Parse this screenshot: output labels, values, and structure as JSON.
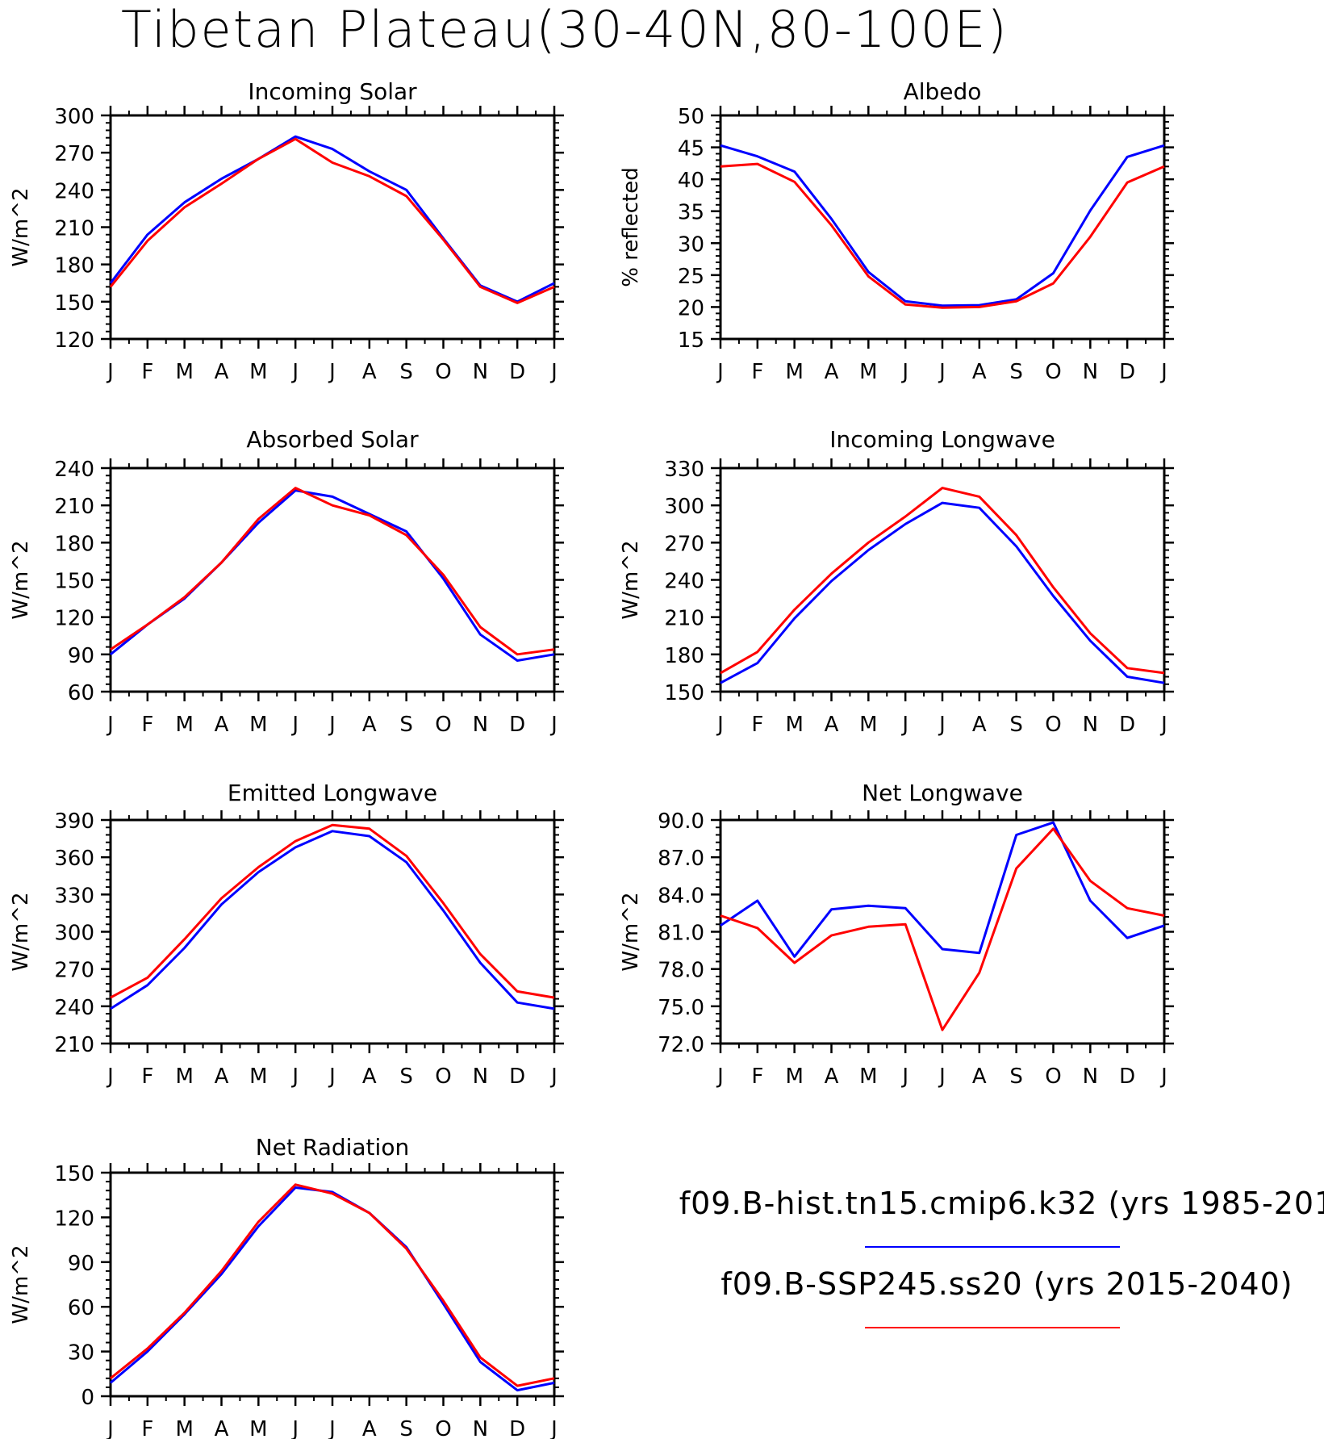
{
  "title": "Tibetan Plateau(30-40N,80-100E)",
  "legend": [
    {
      "label": "f09.B-hist.tn15.cmip6.k32 (yrs 1985-201",
      "color": "#0000ff"
    },
    {
      "label": "f09.B-SSP245.ss20 (yrs 2015-2040)",
      "color": "#ff0000"
    }
  ],
  "chart_data": [
    {
      "type": "line",
      "title": "Incoming Solar",
      "ylabel": "W/m^2",
      "x": [
        "J",
        "F",
        "M",
        "A",
        "M",
        "J",
        "J",
        "A",
        "S",
        "O",
        "N",
        "D",
        "J"
      ],
      "ylim": [
        120,
        300
      ],
      "yticks": [
        "120",
        "150",
        "180",
        "210",
        "240",
        "270",
        "300"
      ],
      "series": [
        {
          "color": "#0000ff",
          "values": [
            165,
            204,
            230,
            249,
            265,
            283,
            273,
            255,
            240,
            201,
            163,
            150,
            165
          ]
        },
        {
          "color": "#ff0000",
          "values": [
            162,
            199,
            226,
            245,
            265,
            281,
            262,
            251,
            235,
            200,
            162,
            149,
            162
          ]
        }
      ]
    },
    {
      "type": "line",
      "title": "Albedo",
      "ylabel": "% reflected",
      "x": [
        "J",
        "F",
        "M",
        "A",
        "M",
        "J",
        "J",
        "A",
        "S",
        "O",
        "N",
        "D",
        "J"
      ],
      "ylim": [
        15,
        50
      ],
      "yticks": [
        "15",
        "20",
        "25",
        "30",
        "35",
        "40",
        "45",
        "50"
      ],
      "series": [
        {
          "color": "#0000ff",
          "values": [
            45.3,
            43.6,
            41.2,
            33.8,
            25.5,
            20.9,
            20.2,
            20.3,
            21.2,
            25.3,
            35.1,
            43.5,
            45.3
          ]
        },
        {
          "color": "#ff0000",
          "values": [
            42.0,
            42.4,
            39.6,
            32.8,
            24.8,
            20.4,
            19.9,
            20.0,
            20.9,
            23.7,
            31.0,
            39.5,
            42.0
          ]
        }
      ]
    },
    {
      "type": "line",
      "title": "Absorbed Solar",
      "ylabel": "W/m^2",
      "x": [
        "J",
        "F",
        "M",
        "A",
        "M",
        "J",
        "J",
        "A",
        "S",
        "O",
        "N",
        "D",
        "J"
      ],
      "ylim": [
        60,
        240
      ],
      "yticks": [
        "60",
        "90",
        "120",
        "150",
        "180",
        "210",
        "240"
      ],
      "series": [
        {
          "color": "#0000ff",
          "values": [
            90,
            114,
            135,
            164,
            196,
            222,
            217,
            203,
            189,
            151,
            106,
            85,
            90
          ]
        },
        {
          "color": "#ff0000",
          "values": [
            94,
            114,
            136,
            164,
            199,
            224,
            210,
            202,
            186,
            154,
            112,
            90,
            94
          ]
        }
      ]
    },
    {
      "type": "line",
      "title": "Incoming Longwave",
      "ylabel": "W/m^2",
      "x": [
        "J",
        "F",
        "M",
        "A",
        "M",
        "J",
        "J",
        "A",
        "S",
        "O",
        "N",
        "D",
        "J"
      ],
      "ylim": [
        150,
        330
      ],
      "yticks": [
        "150",
        "180",
        "210",
        "240",
        "270",
        "300",
        "330"
      ],
      "series": [
        {
          "color": "#0000ff",
          "values": [
            157,
            173,
            209,
            239,
            264,
            285,
            302,
            298,
            267,
            227,
            191,
            162,
            157
          ]
        },
        {
          "color": "#ff0000",
          "values": [
            165,
            182,
            216,
            245,
            270,
            291,
            314,
            307,
            276,
            234,
            197,
            169,
            165
          ]
        }
      ]
    },
    {
      "type": "line",
      "title": "Emitted Longwave",
      "ylabel": "W/m^2",
      "x": [
        "J",
        "F",
        "M",
        "A",
        "M",
        "J",
        "J",
        "A",
        "S",
        "O",
        "N",
        "D",
        "J"
      ],
      "ylim": [
        210,
        390
      ],
      "yticks": [
        "210",
        "240",
        "270",
        "300",
        "330",
        "360",
        "390"
      ],
      "series": [
        {
          "color": "#0000ff",
          "values": [
            238,
            257,
            287,
            322,
            348,
            368,
            381,
            377,
            356,
            317,
            275,
            243,
            238
          ]
        },
        {
          "color": "#ff0000",
          "values": [
            247,
            263,
            294,
            327,
            352,
            373,
            386,
            383,
            361,
            323,
            282,
            252,
            247
          ]
        }
      ]
    },
    {
      "type": "line",
      "title": "Net Longwave",
      "ylabel": "W/m^2",
      "x": [
        "J",
        "F",
        "M",
        "A",
        "M",
        "J",
        "J",
        "A",
        "S",
        "O",
        "N",
        "D",
        "J"
      ],
      "ylim": [
        72,
        90
      ],
      "yticks": [
        "72.0",
        "75.0",
        "78.0",
        "81.0",
        "84.0",
        "87.0",
        "90.0"
      ],
      "series": [
        {
          "color": "#0000ff",
          "values": [
            81.5,
            83.5,
            79.0,
            82.8,
            83.1,
            82.9,
            79.6,
            79.3,
            88.8,
            89.8,
            83.5,
            80.5,
            81.5
          ]
        },
        {
          "color": "#ff0000",
          "values": [
            82.3,
            81.3,
            78.5,
            80.7,
            81.4,
            81.6,
            73.1,
            77.7,
            86.1,
            89.3,
            85.1,
            82.9,
            82.3
          ]
        }
      ]
    },
    {
      "type": "line",
      "title": "Net Radiation",
      "ylabel": "W/m^2",
      "x": [
        "J",
        "F",
        "M",
        "A",
        "M",
        "J",
        "J",
        "A",
        "S",
        "O",
        "N",
        "D",
        "J"
      ],
      "ylim": [
        0,
        150
      ],
      "yticks": [
        "0",
        "30",
        "60",
        "90",
        "120",
        "150"
      ],
      "series": [
        {
          "color": "#0000ff",
          "values": [
            9,
            30,
            55,
            82,
            114,
            140,
            137,
            123,
            100,
            62,
            23,
            4,
            9
          ]
        },
        {
          "color": "#ff0000",
          "values": [
            12,
            32,
            56,
            84,
            117,
            142,
            136,
            123,
            99,
            64,
            26,
            7,
            12
          ]
        }
      ]
    }
  ]
}
